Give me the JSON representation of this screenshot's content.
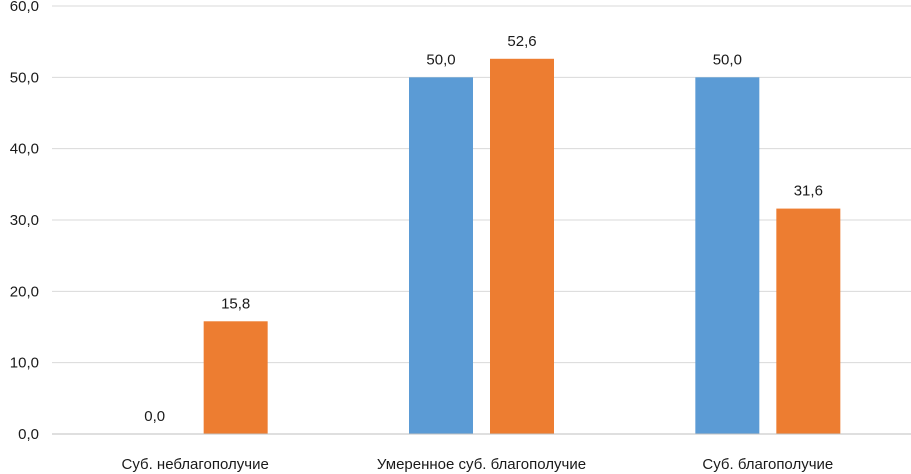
{
  "chart_data": {
    "type": "bar",
    "categories": [
      "Суб. неблагополучие",
      "Умеренное суб. благополучие",
      "Суб. благополучие"
    ],
    "series": [
      {
        "color": "#5b9bd5",
        "values": [
          0.0,
          50.0,
          50.0
        ],
        "labels": [
          "0,0",
          "50,0",
          "50,0"
        ]
      },
      {
        "color": "#ed7d31",
        "values": [
          15.8,
          52.6,
          31.6
        ],
        "labels": [
          "15,8",
          "52,6",
          "31,6"
        ]
      }
    ],
    "ylim": [
      0,
      60
    ],
    "yticks": [
      0,
      10,
      20,
      30,
      40,
      50,
      60
    ],
    "ytick_labels": [
      "0,0",
      "10,0",
      "20,0",
      "30,0",
      "40,0",
      "50,0",
      "60,0"
    ],
    "grid": true,
    "legend": false,
    "title": "",
    "xlabel": "",
    "ylabel": ""
  }
}
